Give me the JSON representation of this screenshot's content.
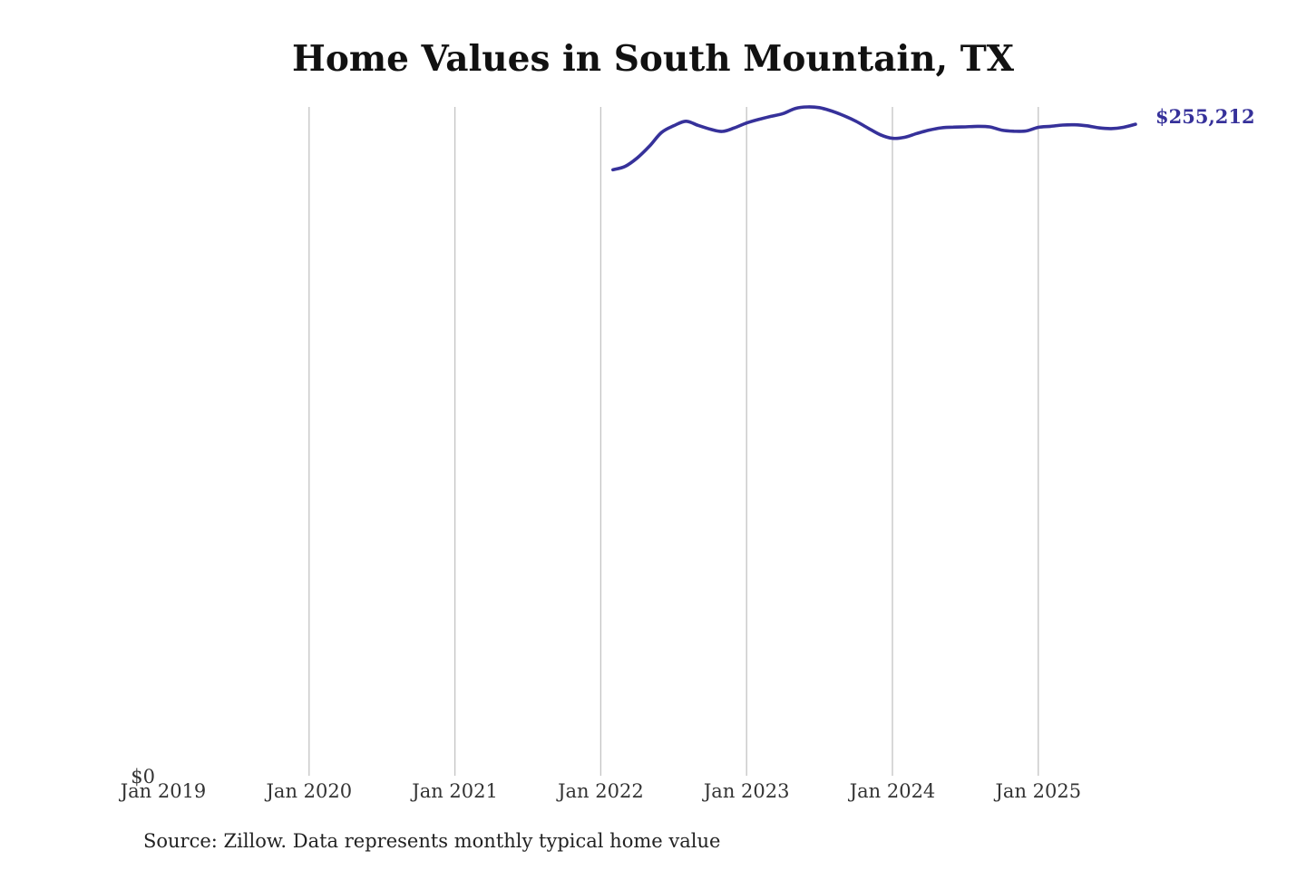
{
  "chart_data": {
    "type": "line",
    "title": "Home Values in South Mountain, TX",
    "xlabel": "",
    "ylabel": "",
    "x_ticks": [
      "Jan 2019",
      "Jan 2020",
      "Jan 2021",
      "Jan 2022",
      "Jan 2023",
      "Jan 2024",
      "Jan 2025"
    ],
    "y_ticks": [
      "$0"
    ],
    "xlim": [
      "2019-01",
      "2025-10"
    ],
    "ylim": [
      0,
      262000
    ],
    "grid": "vertical",
    "line_color": "#36319a",
    "end_label": "$255,212",
    "series": [
      {
        "x": [
          "2022-02",
          "2022-03",
          "2022-04",
          "2022-05",
          "2022-06",
          "2022-07",
          "2022-08",
          "2022-09",
          "2022-10",
          "2022-11",
          "2022-12",
          "2023-01",
          "2023-02",
          "2023-03",
          "2023-04",
          "2023-05",
          "2023-06",
          "2023-07",
          "2023-08",
          "2023-09",
          "2023-10",
          "2023-11",
          "2023-12",
          "2024-01",
          "2024-02",
          "2024-03",
          "2024-04",
          "2024-05",
          "2024-06",
          "2024-07",
          "2024-08",
          "2024-09",
          "2024-10",
          "2024-11",
          "2024-12",
          "2025-01",
          "2025-02",
          "2025-03",
          "2025-04",
          "2025-05",
          "2025-06",
          "2025-07",
          "2025-08",
          "2025-09"
        ],
        "values": [
          237400,
          238700,
          242000,
          246600,
          252000,
          254600,
          256400,
          254800,
          253300,
          252400,
          253800,
          255700,
          257100,
          258300,
          259400,
          261400,
          262000,
          261700,
          260400,
          258600,
          256400,
          253700,
          251100,
          249700,
          250100,
          251600,
          252900,
          253800,
          254100,
          254200,
          254400,
          254200,
          252900,
          252500,
          252600,
          254000,
          254400,
          254900,
          255000,
          254600,
          253800,
          253500,
          254000,
          255212
        ]
      }
    ],
    "source": "Source: Zillow. Data represents monthly typical home value"
  }
}
